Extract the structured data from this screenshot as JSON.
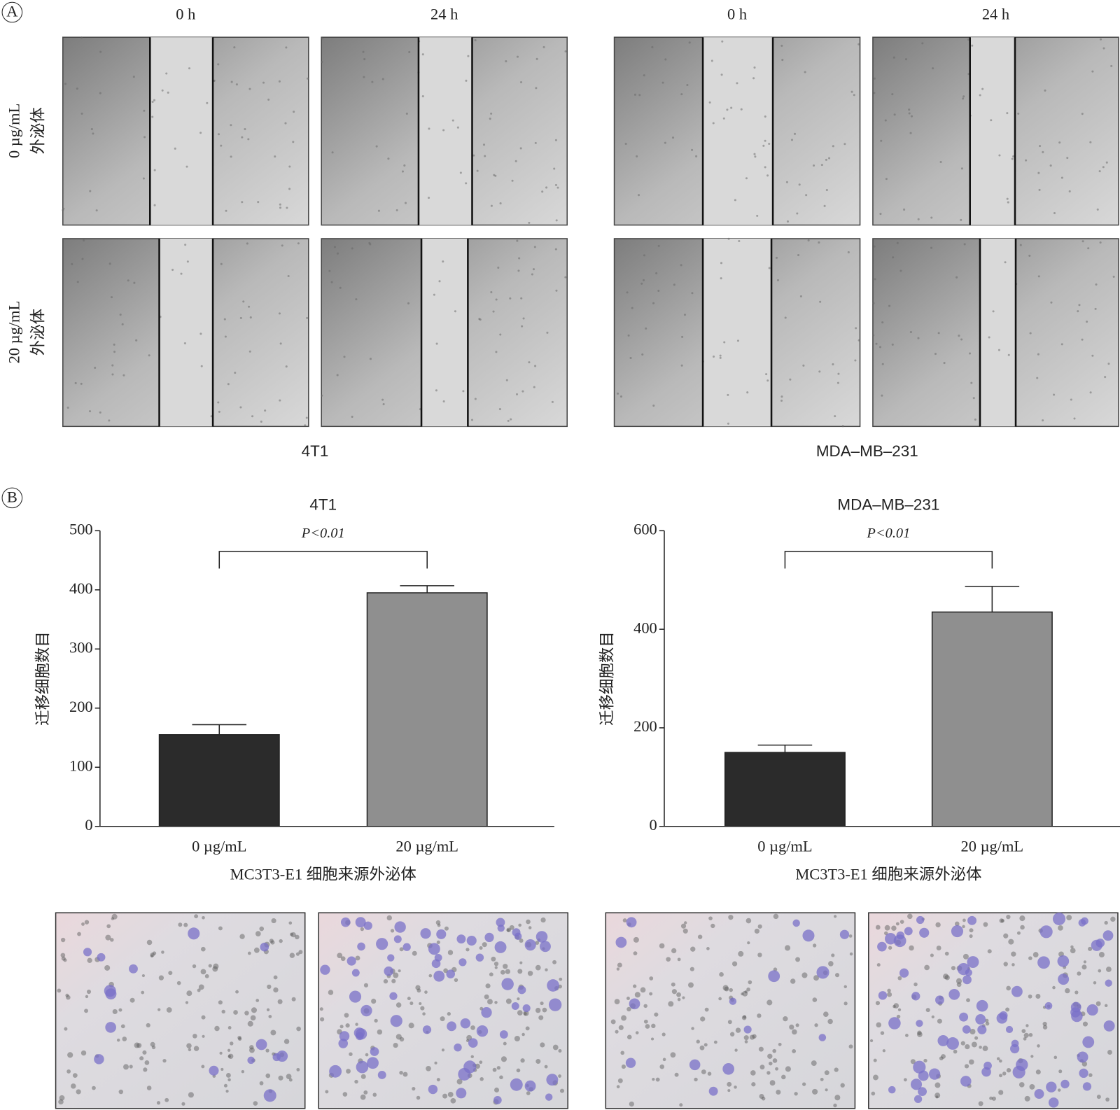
{
  "panel_a": {
    "label": "A",
    "column_labels": [
      "0 h",
      "24 h",
      "0 h",
      "24 h"
    ],
    "row_labels": [
      [
        "0 µg/mL",
        "外泌体"
      ],
      [
        "20 µg/mL",
        "外泌体"
      ]
    ],
    "cell_lines": [
      "4T1",
      "MDA–MB–231"
    ]
  },
  "panel_b_label": "B",
  "chart_data": [
    {
      "type": "bar",
      "title": "4T1",
      "annotation": "P<0.01",
      "y_label": "迁移细胞数目",
      "x_label": "MC3T3-E1 细胞来源外泌体",
      "categories": [
        "0 µg/mL",
        "20 µg/mL"
      ],
      "values": [
        155,
        395
      ],
      "errors": [
        17,
        12
      ],
      "colors": [
        "#2b2b2b",
        "#8f8f8f"
      ],
      "ylim": [
        0,
        500
      ],
      "yticks": [
        0,
        100,
        200,
        300,
        400,
        500
      ]
    },
    {
      "type": "bar",
      "title": "MDA–MB–231",
      "annotation": "P<0.01",
      "y_label": "迁移细胞数目",
      "x_label": "MC3T3-E1 细胞来源外泌体",
      "categories": [
        "0 µg/mL",
        "20 µg/mL"
      ],
      "values": [
        150,
        435
      ],
      "errors": [
        15,
        52
      ],
      "colors": [
        "#2b2b2b",
        "#8f8f8f"
      ],
      "ylim": [
        0,
        600
      ],
      "yticks": [
        0,
        200,
        400,
        600
      ]
    }
  ]
}
